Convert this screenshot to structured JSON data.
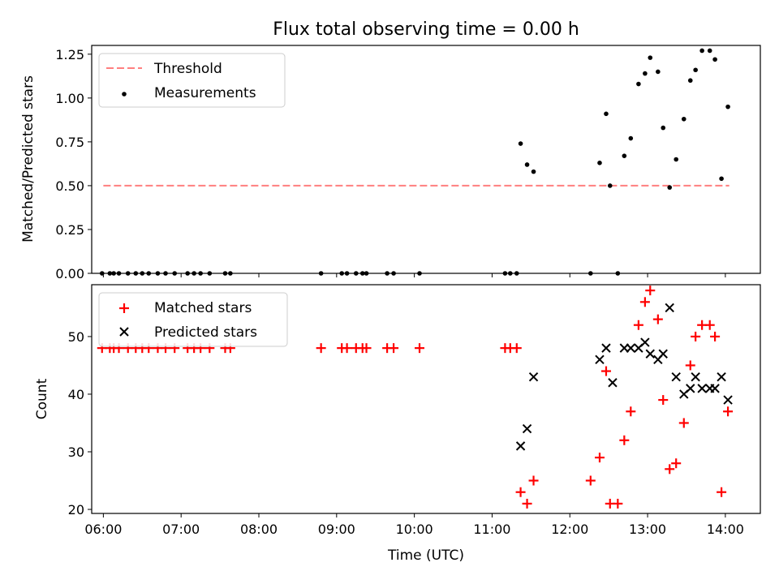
{
  "title": "Flux total observing time = 0.00 h",
  "colors": {
    "threshold": "#ff7f7f",
    "measurements": "#000000",
    "matched": "#ff0000",
    "predicted": "#000000"
  },
  "chart_data": [
    {
      "type": "scatter",
      "panel": "top",
      "ylabel": "Matched/Predicted stars",
      "xlim": [
        5.85,
        14.45
      ],
      "ylim": [
        0,
        1.3
      ],
      "yticks": [
        0.0,
        0.25,
        0.5,
        0.75,
        1.0,
        1.25
      ],
      "ytick_labels": [
        "0.00",
        "0.25",
        "0.50",
        "0.75",
        "1.00",
        "1.25"
      ],
      "legend_position": "top-left",
      "threshold": {
        "name": "Threshold",
        "style": "dashed",
        "x_range": [
          "06:00",
          "14:03"
        ],
        "y": 0.5
      },
      "measurements": {
        "name": "Measurements",
        "points": [
          [
            "05:59",
            0.0
          ],
          [
            "06:05",
            0.0
          ],
          [
            "06:08",
            0.0
          ],
          [
            "06:12",
            0.0
          ],
          [
            "06:19",
            0.0
          ],
          [
            "06:25",
            0.0
          ],
          [
            "06:30",
            0.0
          ],
          [
            "06:35",
            0.0
          ],
          [
            "06:42",
            0.0
          ],
          [
            "06:48",
            0.0
          ],
          [
            "06:55",
            0.0
          ],
          [
            "07:05",
            0.0
          ],
          [
            "07:10",
            0.0
          ],
          [
            "07:15",
            0.0
          ],
          [
            "07:22",
            0.0
          ],
          [
            "07:34",
            0.0
          ],
          [
            "07:38",
            0.0
          ],
          [
            "08:48",
            0.0
          ],
          [
            "09:04",
            0.0
          ],
          [
            "09:08",
            0.0
          ],
          [
            "09:15",
            0.0
          ],
          [
            "09:20",
            0.0
          ],
          [
            "09:23",
            0.0
          ],
          [
            "09:39",
            0.0
          ],
          [
            "09:44",
            0.0
          ],
          [
            "10:04",
            0.0
          ],
          [
            "11:10",
            0.0
          ],
          [
            "11:14",
            0.0
          ],
          [
            "11:19",
            0.0
          ],
          [
            "12:16",
            0.0
          ],
          [
            "12:37",
            0.0
          ],
          [
            "11:22",
            0.74
          ],
          [
            "11:27",
            0.62
          ],
          [
            "11:32",
            0.58
          ],
          [
            "12:23",
            0.63
          ],
          [
            "12:28",
            0.91
          ],
          [
            "12:31",
            0.5
          ],
          [
            "12:42",
            0.67
          ],
          [
            "12:47",
            0.77
          ],
          [
            "12:53",
            1.08
          ],
          [
            "12:58",
            1.14
          ],
          [
            "13:02",
            1.23
          ],
          [
            "13:08",
            1.15
          ],
          [
            "13:12",
            0.83
          ],
          [
            "13:17",
            0.49
          ],
          [
            "13:22",
            0.65
          ],
          [
            "13:28",
            0.88
          ],
          [
            "13:33",
            1.1
          ],
          [
            "13:37",
            1.16
          ],
          [
            "13:42",
            1.27
          ],
          [
            "13:48",
            1.27
          ],
          [
            "13:52",
            1.22
          ],
          [
            "13:57",
            0.54
          ],
          [
            "14:02",
            0.95
          ]
        ]
      }
    },
    {
      "type": "scatter",
      "panel": "bottom",
      "ylabel": "Count",
      "xlabel": "Time (UTC)",
      "xlim": [
        5.85,
        14.45
      ],
      "ylim": [
        19.3,
        59.0
      ],
      "yticks": [
        20,
        30,
        40,
        50
      ],
      "ytick_labels": [
        "20",
        "30",
        "40",
        "50"
      ],
      "xticks": [
        "06:00",
        "07:00",
        "08:00",
        "09:00",
        "10:00",
        "11:00",
        "12:00",
        "13:00",
        "14:00"
      ],
      "legend_position": "top-left",
      "series": [
        {
          "name": "Matched stars",
          "marker": "plus",
          "points": [
            [
              "05:59",
              48
            ],
            [
              "06:05",
              48
            ],
            [
              "06:08",
              48
            ],
            [
              "06:12",
              48
            ],
            [
              "06:19",
              48
            ],
            [
              "06:25",
              48
            ],
            [
              "06:30",
              48
            ],
            [
              "06:35",
              48
            ],
            [
              "06:42",
              48
            ],
            [
              "06:48",
              48
            ],
            [
              "06:55",
              48
            ],
            [
              "07:05",
              48
            ],
            [
              "07:10",
              48
            ],
            [
              "07:15",
              48
            ],
            [
              "07:22",
              48
            ],
            [
              "07:34",
              48
            ],
            [
              "07:38",
              48
            ],
            [
              "08:48",
              48
            ],
            [
              "09:04",
              48
            ],
            [
              "09:08",
              48
            ],
            [
              "09:15",
              48
            ],
            [
              "09:20",
              48
            ],
            [
              "09:23",
              48
            ],
            [
              "09:39",
              48
            ],
            [
              "09:44",
              48
            ],
            [
              "10:04",
              48
            ],
            [
              "11:10",
              48
            ],
            [
              "11:14",
              48
            ],
            [
              "11:19",
              48
            ],
            [
              "11:22",
              23
            ],
            [
              "11:27",
              21
            ],
            [
              "11:32",
              25
            ],
            [
              "12:16",
              25
            ],
            [
              "12:23",
              29
            ],
            [
              "12:28",
              44
            ],
            [
              "12:31",
              21
            ],
            [
              "12:37",
              21
            ],
            [
              "12:42",
              32
            ],
            [
              "12:47",
              37
            ],
            [
              "12:53",
              52
            ],
            [
              "12:58",
              56
            ],
            [
              "13:02",
              58
            ],
            [
              "13:08",
              53
            ],
            [
              "13:12",
              39
            ],
            [
              "13:17",
              27
            ],
            [
              "13:22",
              28
            ],
            [
              "13:28",
              35
            ],
            [
              "13:33",
              45
            ],
            [
              "13:37",
              50
            ],
            [
              "13:42",
              52
            ],
            [
              "13:48",
              52
            ],
            [
              "13:52",
              50
            ],
            [
              "13:57",
              23
            ],
            [
              "14:02",
              37
            ]
          ]
        },
        {
          "name": "Predicted stars",
          "marker": "x",
          "points": [
            [
              "11:22",
              31
            ],
            [
              "11:27",
              34
            ],
            [
              "11:32",
              43
            ],
            [
              "12:23",
              46
            ],
            [
              "12:28",
              48
            ],
            [
              "12:33",
              42
            ],
            [
              "12:42",
              48
            ],
            [
              "12:47",
              48
            ],
            [
              "12:53",
              48
            ],
            [
              "12:58",
              49
            ],
            [
              "13:02",
              47
            ],
            [
              "13:08",
              46
            ],
            [
              "13:12",
              47
            ],
            [
              "13:17",
              55
            ],
            [
              "13:22",
              43
            ],
            [
              "13:28",
              40
            ],
            [
              "13:33",
              41
            ],
            [
              "13:37",
              43
            ],
            [
              "13:42",
              41
            ],
            [
              "13:48",
              41
            ],
            [
              "13:52",
              41
            ],
            [
              "13:57",
              43
            ],
            [
              "14:02",
              39
            ]
          ]
        }
      ]
    }
  ]
}
